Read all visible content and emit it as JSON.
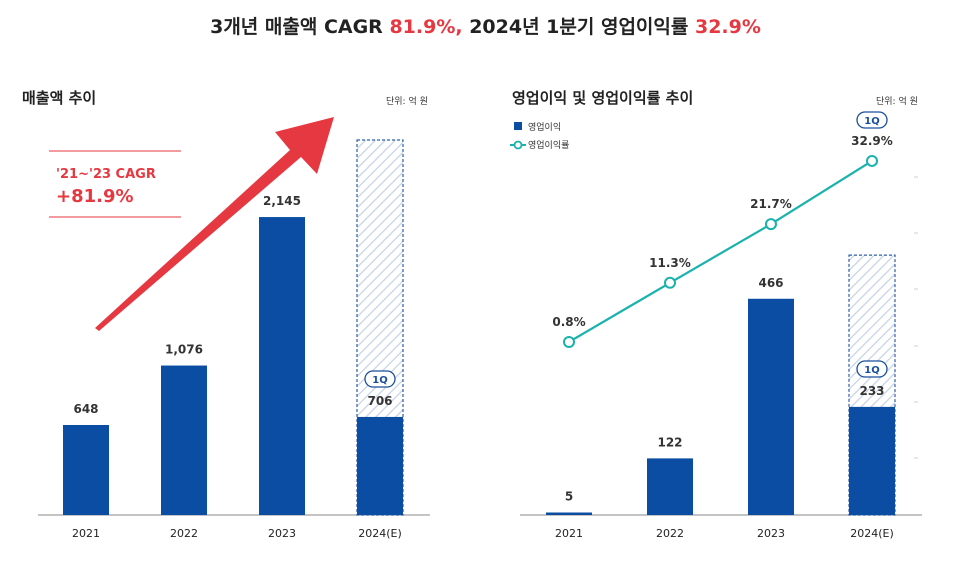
{
  "headline": {
    "part1": "3개년 매출액 CAGR ",
    "part2": "81.9%,",
    "part3": " 2024년 1분기 영업이익률 ",
    "part4": "32.9%"
  },
  "colors": {
    "bar": "#0a4da2",
    "line": "#19b2ad",
    "accent": "#e63840",
    "hatch": "#c5d3e6",
    "badge": "#1a4f9c"
  },
  "chart_data": [
    {
      "type": "bar",
      "title": "매출액 추이",
      "unit": "단위: 억 원",
      "categories": [
        "2021",
        "2022",
        "2023",
        "2024(E)"
      ],
      "values": [
        648,
        1076,
        2145,
        706
      ],
      "projected_total_2024E": 2700,
      "badge": "1Q",
      "annotation": {
        "label": "'21~'23 CAGR",
        "value": "+81.9%"
      }
    },
    {
      "type": "bar+line",
      "title": "영업이익 및 영업이익률 추이",
      "unit": "단위: 억 원",
      "categories": [
        "2021",
        "2022",
        "2023",
        "2024(E)"
      ],
      "series": [
        {
          "name": "영업이익",
          "type": "bar",
          "values": [
            5,
            122,
            466,
            233
          ]
        },
        {
          "name": "영업이익률",
          "type": "line",
          "values": [
            0.8,
            11.3,
            21.7,
            32.9
          ],
          "labels": [
            "0.8%",
            "11.3%",
            "21.7%",
            "32.9%"
          ]
        }
      ],
      "projected_total_2024E": 560,
      "badge": "1Q",
      "legend_position": "top-left"
    }
  ]
}
